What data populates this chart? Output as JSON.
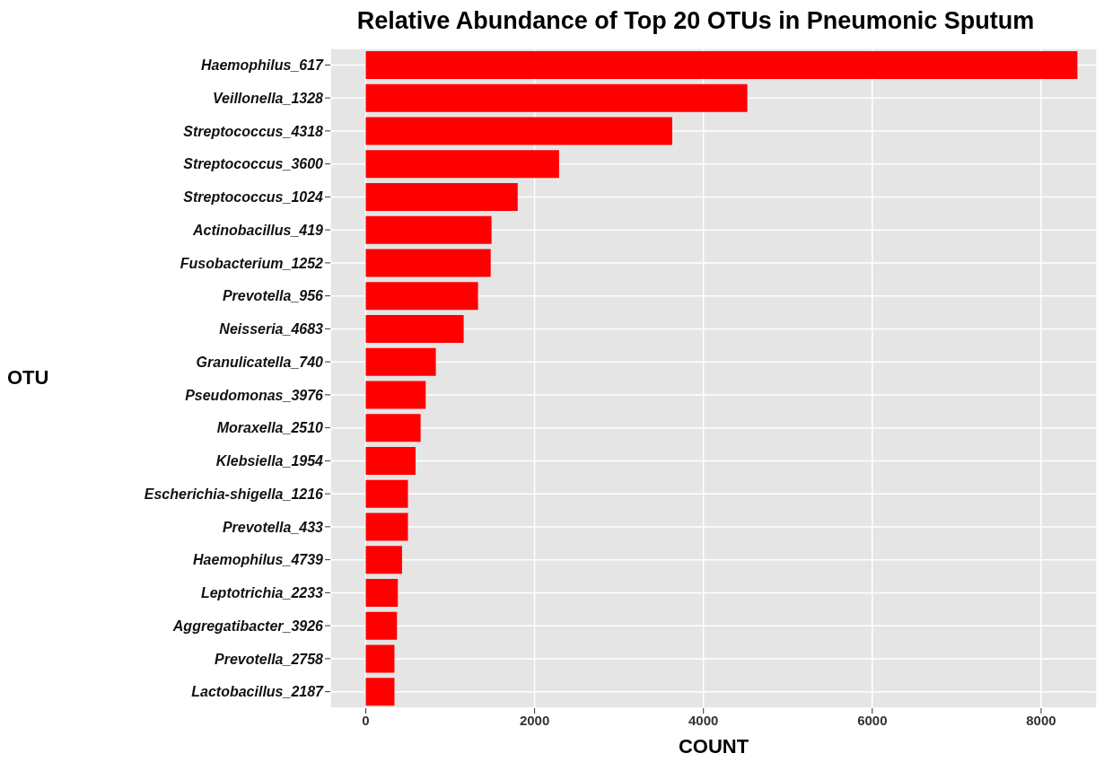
{
  "chart_data": {
    "type": "bar",
    "orientation": "horizontal",
    "title": "Relative Abundance of Top 20 OTUs in Pneumonic Sputum",
    "xlabel": "COUNT",
    "ylabel": "OTU",
    "categories": [
      "Haemophilus_617",
      "Veillonella_1328",
      "Streptococcus_4318",
      "Streptococcus_3600",
      "Streptococcus_1024",
      "Actinobacillus_419",
      "Fusobacterium_1252",
      "Prevotella_956",
      "Neisseria_4683",
      "Granulicatella_740",
      "Pseudomonas_3976",
      "Moraxella_2510",
      "Klebsiella_1954",
      "Escherichia-shigella_1216",
      "Prevotella_433",
      "Haemophilus_4739",
      "Leptotrichia_2233",
      "Aggregatibacter_3926",
      "Prevotella_2758",
      "Lactobacillus_2187"
    ],
    "values": [
      8430,
      4520,
      3630,
      2290,
      1800,
      1490,
      1480,
      1330,
      1160,
      830,
      710,
      650,
      590,
      500,
      500,
      430,
      380,
      370,
      340,
      340
    ],
    "color": "#ff0000",
    "xlim": [
      -420,
      8660
    ],
    "xticks": [
      0,
      2000,
      4000,
      6000,
      8000
    ],
    "grid": true
  }
}
